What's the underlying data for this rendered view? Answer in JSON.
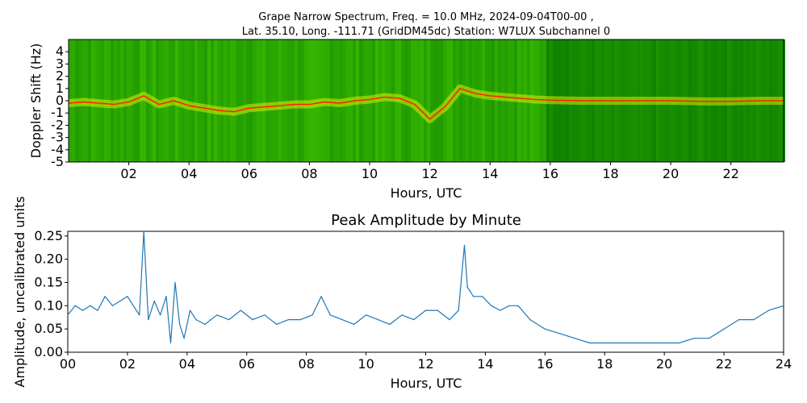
{
  "chart_data": [
    {
      "type": "heatmap",
      "title_line1": "Grape Narrow Spectrum, Freq. = 10.0 MHz, 2024-09-04T00-00 ,",
      "title_line2": "Lat.  35.10, Long. -111.71 (GridDM45dc) Station: W7LUX Subchannel 0",
      "xlabel": "Hours, UTC",
      "ylabel": "Doppler Shift (Hz)",
      "xlim": [
        0,
        23.75
      ],
      "ylim": [
        -5,
        5
      ],
      "xticks": [
        2,
        4,
        6,
        8,
        10,
        12,
        14,
        16,
        18,
        20,
        22
      ],
      "xtick_labels": [
        "02",
        "04",
        "06",
        "08",
        "10",
        "12",
        "14",
        "16",
        "18",
        "20",
        "22"
      ],
      "yticks": [
        4,
        3,
        2,
        1,
        0,
        -1,
        -2,
        -3,
        -4,
        -5
      ],
      "ytick_labels": [
        "4",
        "3",
        "2",
        "1",
        "0",
        "-1",
        "-2",
        "-3",
        "-4",
        "-5"
      ],
      "colors": {
        "low": "#006400",
        "mid": "#7fc000",
        "high": "#ffff00",
        "peak": "#ff2000"
      },
      "doppler_trace": {
        "x": [
          0,
          0.5,
          1,
          1.5,
          2,
          2.5,
          3,
          3.5,
          4,
          4.5,
          5,
          5.5,
          6,
          6.5,
          7,
          7.5,
          8,
          8.5,
          9,
          9.5,
          10,
          10.5,
          11,
          11.5,
          12,
          12.5,
          13,
          13.5,
          14,
          14.5,
          15,
          15.5,
          16,
          17,
          18,
          19,
          20,
          21,
          22,
          23,
          23.75
        ],
        "y": [
          -0.2,
          -0.1,
          -0.2,
          -0.3,
          -0.1,
          0.4,
          -0.3,
          0.0,
          -0.4,
          -0.6,
          -0.8,
          -0.9,
          -0.6,
          -0.5,
          -0.4,
          -0.3,
          -0.3,
          -0.1,
          -0.2,
          0.0,
          0.1,
          0.3,
          0.2,
          -0.3,
          -1.5,
          -0.5,
          1.0,
          0.6,
          0.4,
          0.3,
          0.2,
          0.1,
          0.05,
          0.0,
          0.0,
          0.0,
          0.0,
          -0.05,
          -0.05,
          0.0,
          0.0
        ]
      }
    },
    {
      "type": "line",
      "title": "Peak Amplitude by Minute",
      "xlabel": "Hours, UTC",
      "ylabel": "Amplitude, uncalibrated units",
      "xlim": [
        0,
        24
      ],
      "ylim": [
        0,
        0.26
      ],
      "xticks": [
        0,
        2,
        4,
        6,
        8,
        10,
        12,
        14,
        16,
        18,
        20,
        22,
        24
      ],
      "xtick_labels": [
        "00",
        "02",
        "04",
        "06",
        "08",
        "10",
        "12",
        "14",
        "16",
        "18",
        "20",
        "22",
        "24"
      ],
      "yticks": [
        0,
        0.05,
        0.1,
        0.15,
        0.2,
        0.25
      ],
      "ytick_labels": [
        "0.00",
        "0.05",
        "0.10",
        "0.15",
        "0.20",
        "0.25"
      ],
      "line_color": "#1f77b4",
      "series": [
        {
          "x": [
            0,
            0.25,
            0.5,
            0.75,
            1,
            1.25,
            1.5,
            1.75,
            2,
            2.2,
            2.4,
            2.55,
            2.7,
            2.9,
            3.1,
            3.3,
            3.45,
            3.6,
            3.75,
            3.9,
            4.1,
            4.3,
            4.6,
            5,
            5.4,
            5.8,
            6.2,
            6.6,
            7,
            7.4,
            7.8,
            8.2,
            8.5,
            8.8,
            9.2,
            9.6,
            10,
            10.4,
            10.8,
            11.2,
            11.6,
            12,
            12.4,
            12.8,
            13.1,
            13.3,
            13.4,
            13.6,
            13.9,
            14.2,
            14.5,
            14.8,
            15.1,
            15.5,
            16,
            16.5,
            17,
            17.5,
            18,
            18.5,
            19,
            19.5,
            20,
            20.5,
            21,
            21.5,
            22,
            22.5,
            23,
            23.5,
            24
          ],
          "values": [
            0.08,
            0.1,
            0.09,
            0.1,
            0.09,
            0.12,
            0.1,
            0.11,
            0.12,
            0.1,
            0.08,
            0.26,
            0.07,
            0.11,
            0.08,
            0.12,
            0.02,
            0.15,
            0.06,
            0.03,
            0.09,
            0.07,
            0.06,
            0.08,
            0.07,
            0.09,
            0.07,
            0.08,
            0.06,
            0.07,
            0.07,
            0.08,
            0.12,
            0.08,
            0.07,
            0.06,
            0.08,
            0.07,
            0.06,
            0.08,
            0.07,
            0.09,
            0.09,
            0.07,
            0.09,
            0.23,
            0.14,
            0.12,
            0.12,
            0.1,
            0.09,
            0.1,
            0.1,
            0.07,
            0.05,
            0.04,
            0.03,
            0.02,
            0.02,
            0.02,
            0.02,
            0.02,
            0.02,
            0.02,
            0.03,
            0.03,
            0.05,
            0.07,
            0.07,
            0.09,
            0.1
          ]
        }
      ]
    }
  ]
}
